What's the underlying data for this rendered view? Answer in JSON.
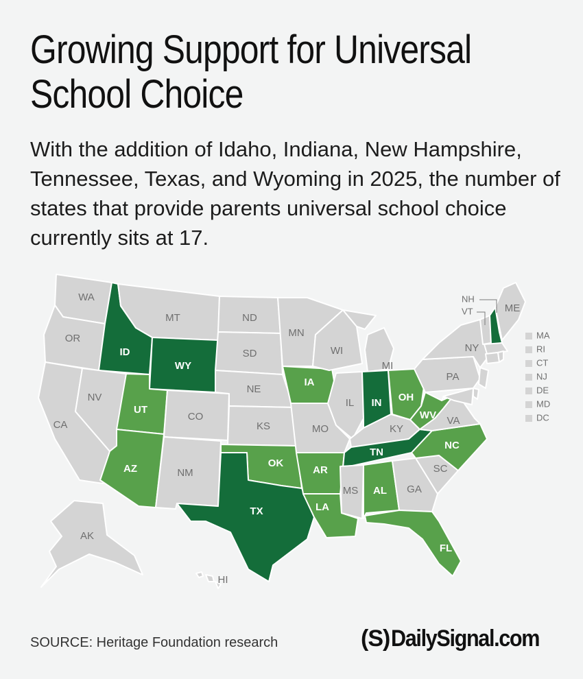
{
  "title": "Growing Support for Universal School Choice",
  "subtitle": "With the addition of Idaho, Indiana, New Hampshire, Tennessee, Texas, and Wyoming in 2025, the number of states that provide parents universal school choice currently sits at 17.",
  "source": "SOURCE: Heritage Foundation research",
  "logo": {
    "mark": "(S)",
    "text": "DailySignal.com"
  },
  "colors": {
    "background": "#f3f4f4",
    "no_choice": "#d4d4d4",
    "existing_choice": "#58a14b",
    "added_2025": "#146d3a",
    "border": "#ffffff"
  },
  "map": {
    "added_2025": [
      "ID",
      "IN",
      "NH",
      "TN",
      "TX",
      "WY"
    ],
    "existing": [
      "AL",
      "AR",
      "AZ",
      "FL",
      "IA",
      "LA",
      "NC",
      "OH",
      "OK",
      "UT",
      "WV"
    ],
    "state_labels": [
      "WA",
      "OR",
      "CA",
      "ID",
      "NV",
      "MT",
      "WY",
      "UT",
      "AZ",
      "CO",
      "NM",
      "ND",
      "SD",
      "NE",
      "KS",
      "OK",
      "TX",
      "MN",
      "IA",
      "MO",
      "AR",
      "LA",
      "WI",
      "IL",
      "MI",
      "IN",
      "OH",
      "KY",
      "TN",
      "MS",
      "AL",
      "GA",
      "FL",
      "SC",
      "NC",
      "VA",
      "WV",
      "PA",
      "NY",
      "ME",
      "AK",
      "HI",
      "NH",
      "VT"
    ],
    "small_states": [
      "MA",
      "RI",
      "CT",
      "NJ",
      "DE",
      "MD",
      "DC"
    ]
  }
}
